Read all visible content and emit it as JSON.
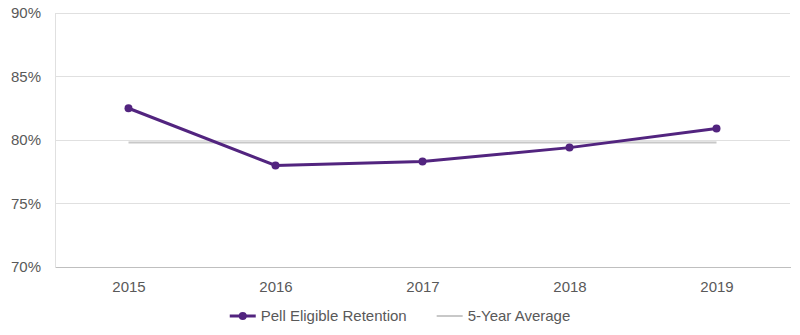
{
  "chart_data": {
    "type": "line",
    "categories": [
      "2015",
      "2016",
      "2017",
      "2018",
      "2019"
    ],
    "series": [
      {
        "name": "Pell Eligible Retention",
        "color": "#52247f",
        "marker": "circle",
        "line_style": "solid",
        "values": [
          82.5,
          78.0,
          78.3,
          79.4,
          80.9
        ]
      },
      {
        "name": "5-Year Average",
        "color": "#c8c8c8",
        "marker": "none",
        "line_style": "solid",
        "values": [
          79.8,
          79.8,
          79.8,
          79.8,
          79.8
        ]
      }
    ],
    "ylim": [
      70,
      90
    ],
    "yticks": [
      {
        "value": 70,
        "label": "70%"
      },
      {
        "value": 75,
        "label": "75%"
      },
      {
        "value": 80,
        "label": "80%"
      },
      {
        "value": 85,
        "label": "85%"
      },
      {
        "value": 90,
        "label": "90%"
      }
    ],
    "grid": true,
    "legend": "bottom"
  }
}
